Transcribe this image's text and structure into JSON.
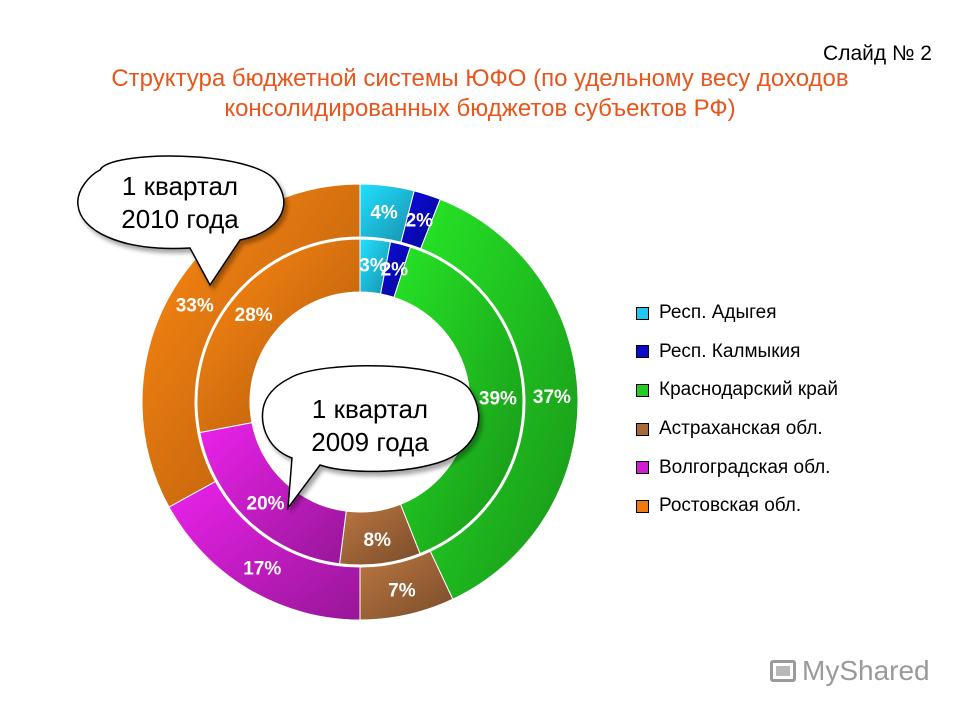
{
  "slide": {
    "number_label": "Слайд № 2",
    "title_line1": "Структура бюджетной системы ЮФО (по удельному весу доходов",
    "title_line2": "консолидированных бюджетов субъектов РФ)"
  },
  "chart_data": {
    "type": "pie",
    "variant": "doughnut",
    "categories": [
      "Респ. Адыгея",
      "Респ. Калмыкия",
      "Краснодарский край",
      "Астраханская обл.",
      "Волгоградская обл.",
      "Ростовская обл."
    ],
    "colors": [
      "#1ec8f0",
      "#0a0ac8",
      "#22cc22",
      "#a86a3a",
      "#d21ed2",
      "#f07a10"
    ],
    "series": [
      {
        "ring": "outer",
        "callout": "1 квартал 2010 года",
        "values": [
          4,
          2,
          37,
          7,
          17,
          33
        ],
        "labels": [
          "4%",
          "2%",
          "37%",
          "7%",
          "17%",
          "33%"
        ]
      },
      {
        "ring": "inner",
        "callout": "1 квартал 2009 года",
        "values": [
          3,
          2,
          39,
          8,
          20,
          28
        ],
        "labels": [
          "3%",
          "2%",
          "39%",
          "8%",
          "20%",
          "28%"
        ]
      }
    ],
    "callouts": {
      "outer_line1": "1 квартал",
      "outer_line2": "2010 года",
      "inner_line1": "1 квартал",
      "inner_line2": "2009 года"
    },
    "legend_position": "right"
  },
  "watermark": {
    "text": "MyShared",
    "icon": "monitor-icon"
  }
}
